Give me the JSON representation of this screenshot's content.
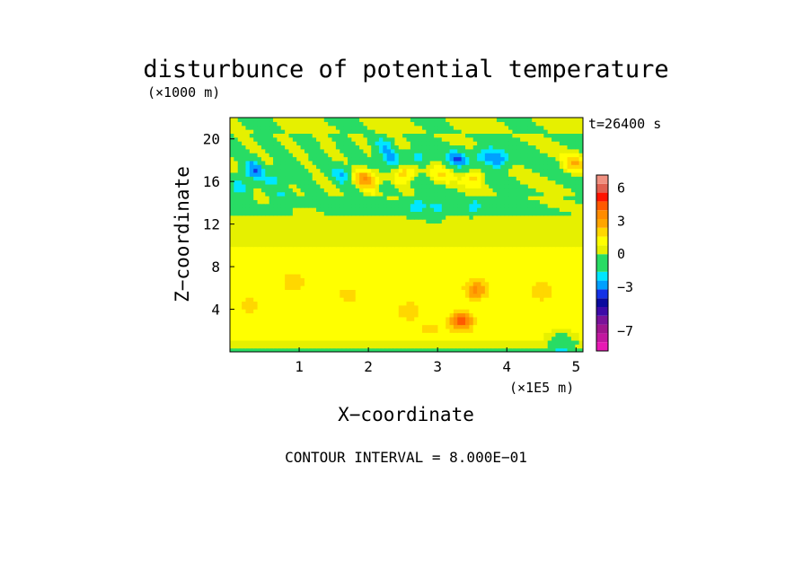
{
  "chart_data": {
    "type": "heatmap",
    "title": "disturbunce of potential temperature",
    "time_label": "t=26400 s",
    "xlabel": "X−coordinate",
    "ylabel": "Z−coordinate",
    "x_unit": "(×1E5 m)",
    "y_unit": "(×1000 m)",
    "footer": "CONTOUR INTERVAL = 8.000E−01",
    "xlim": [
      0,
      5.1
    ],
    "ylim": [
      0,
      22
    ],
    "x_ticks": [
      {
        "value": 1,
        "label": "1"
      },
      {
        "value": 2,
        "label": "2"
      },
      {
        "value": 3,
        "label": "3"
      },
      {
        "value": 4,
        "label": "4"
      },
      {
        "value": 5,
        "label": "5"
      }
    ],
    "y_ticks": [
      {
        "value": 4,
        "label": "4"
      },
      {
        "value": 8,
        "label": "8"
      },
      {
        "value": 12,
        "label": "12"
      },
      {
        "value": 16,
        "label": "16"
      },
      {
        "value": 20,
        "label": "20"
      }
    ],
    "contour_interval": 0.8,
    "colorbar": {
      "levels": [
        -8.8,
        -8.0,
        -7.2,
        -6.4,
        -5.6,
        -4.8,
        -4.0,
        -3.2,
        -2.4,
        -1.6,
        -0.8,
        0.0,
        0.8,
        1.6,
        2.4,
        3.2,
        4.0,
        4.8,
        5.6,
        6.4,
        7.2
      ],
      "colors": [
        "#e81ab4",
        "#c2189f",
        "#a0168e",
        "#7a1299",
        "#3d0aa8",
        "#0a0a9e",
        "#1432e6",
        "#00a0ff",
        "#00e6ff",
        "#28dc64",
        "#28dc64",
        "#e6f000",
        "#ffff00",
        "#ffd700",
        "#ffa500",
        "#ff8c00",
        "#ff5a00",
        "#ff1400",
        "#e06050",
        "#f09080"
      ],
      "tick_labels": [
        {
          "value": 6,
          "label": "6"
        },
        {
          "value": 3,
          "label": "3"
        },
        {
          "value": 0,
          "label": "0"
        },
        {
          "value": -3,
          "label": "−3"
        },
        {
          "value": -7,
          "label": "−7"
        }
      ]
    },
    "features": [
      {
        "x": 0.35,
        "z": 17.2,
        "value": -3.4
      },
      {
        "x": 0.2,
        "z": 15.8,
        "value": -1.6
      },
      {
        "x": 0.7,
        "z": 16.5,
        "value": -1.4
      },
      {
        "x": 1.05,
        "z": 17.0,
        "value": -1.0
      },
      {
        "x": 1.65,
        "z": 16.8,
        "value": -2.2
      },
      {
        "x": 2.2,
        "z": 19.2,
        "value": -2.4
      },
      {
        "x": 2.3,
        "z": 17.8,
        "value": -2.2
      },
      {
        "x": 2.7,
        "z": 18.2,
        "value": -2.0
      },
      {
        "x": 3.3,
        "z": 18.2,
        "value": -3.4
      },
      {
        "x": 3.7,
        "z": 18.5,
        "value": -2.4
      },
      {
        "x": 3.9,
        "z": 18.0,
        "value": -2.2
      },
      {
        "x": 2.7,
        "z": 13.8,
        "value": -2.2
      },
      {
        "x": 3.0,
        "z": 13.6,
        "value": -1.8
      },
      {
        "x": 3.5,
        "z": 13.5,
        "value": -1.8
      },
      {
        "x": 3.85,
        "z": 13.4,
        "value": -1.4
      },
      {
        "x": 0.8,
        "z": 14.6,
        "value": -1.4
      },
      {
        "x": 1.9,
        "z": 16.6,
        "value": 2.2
      },
      {
        "x": 2.05,
        "z": 16.2,
        "value": 1.8
      },
      {
        "x": 2.55,
        "z": 17.0,
        "value": 2.0
      },
      {
        "x": 3.05,
        "z": 16.6,
        "value": 1.8
      },
      {
        "x": 3.55,
        "z": 16.6,
        "value": 1.6
      },
      {
        "x": 4.95,
        "z": 17.6,
        "value": 2.6
      },
      {
        "x": 0.3,
        "z": 4.5,
        "value": 2.0
      },
      {
        "x": 0.9,
        "z": 6.4,
        "value": 2.2
      },
      {
        "x": 1.7,
        "z": 5.3,
        "value": 1.8
      },
      {
        "x": 2.6,
        "z": 4.0,
        "value": 2.0
      },
      {
        "x": 3.35,
        "z": 3.0,
        "value": 4.4
      },
      {
        "x": 3.55,
        "z": 5.8,
        "value": 3.4
      },
      {
        "x": 4.5,
        "z": 5.8,
        "value": 2.0
      },
      {
        "x": 2.9,
        "z": 2.0,
        "value": 1.8
      },
      {
        "x": 4.8,
        "z": 1.0,
        "value": -1.0
      },
      {
        "x": 2.0,
        "z": 0.2,
        "value": -1.0
      }
    ]
  }
}
